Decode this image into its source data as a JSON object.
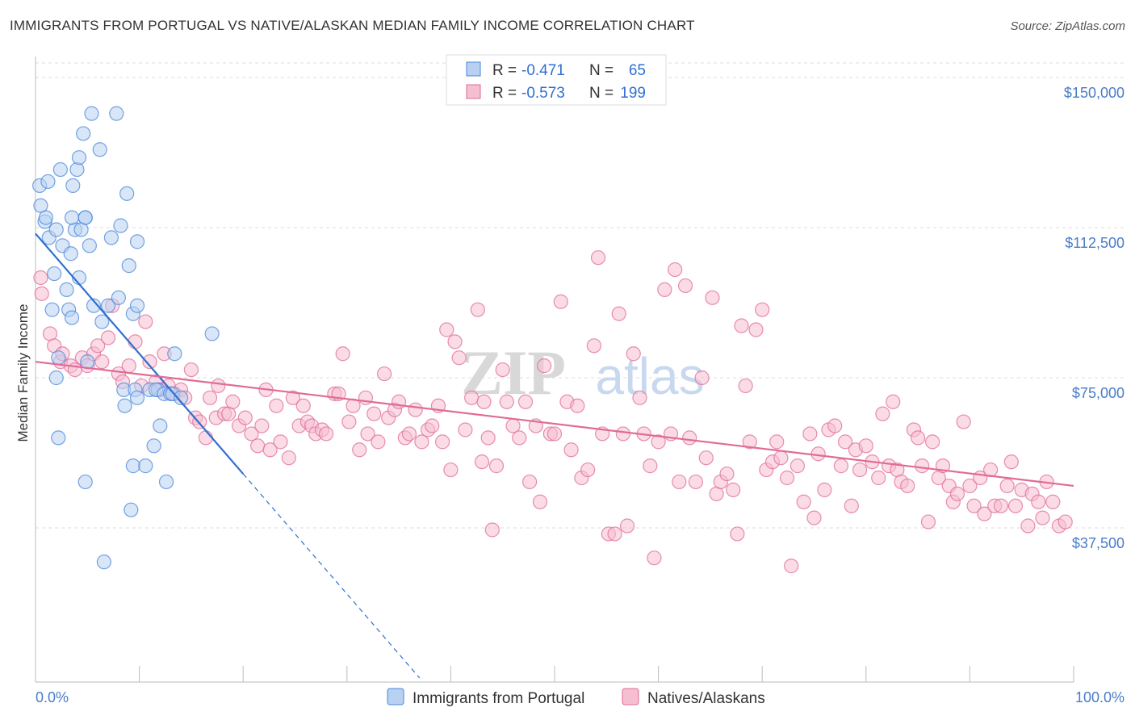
{
  "title": "IMMIGRANTS FROM PORTUGAL VS NATIVE/ALASKAN MEDIAN FAMILY INCOME CORRELATION CHART",
  "source": "Source: ZipAtlas.com",
  "watermark": {
    "zip": "ZIP",
    "atlas": "atlas"
  },
  "colors": {
    "blue": "#4a86d9",
    "blue_fill": "#b8d1f2",
    "pink": "#e06b96",
    "pink_fill": "#f5bed1",
    "axis_text": "#4a7cc9",
    "grid": "#dddddd"
  },
  "legend_top": [
    {
      "r_label": "R =",
      "r_value": "-0.471",
      "n_label": "N =",
      "n_value": "65",
      "series": "blue"
    },
    {
      "r_label": "R =",
      "r_value": "-0.573",
      "n_label": "N =",
      "n_value": "199",
      "series": "pink"
    }
  ],
  "chart_data": {
    "type": "scatter",
    "xlabel": "",
    "ylabel": "Median Family Income",
    "xlim": [
      0,
      100
    ],
    "ylim": [
      0,
      160000
    ],
    "x_tick_labels": [
      "0.0%",
      "100.0%"
    ],
    "y_ticks": [
      {
        "value": 37500,
        "label": "$37,500"
      },
      {
        "value": 75000,
        "label": "$75,000"
      },
      {
        "value": 112500,
        "label": "$112,500"
      },
      {
        "value": 150000,
        "label": "$150,000"
      }
    ],
    "series": [
      {
        "name": "Immigrants from Portugal",
        "color": "blue",
        "trend": {
          "x0": 0,
          "y0": 111000,
          "x_solid_end": 20,
          "x1": 37,
          "y1": 0
        },
        "points": [
          [
            0.4,
            123000
          ],
          [
            0.5,
            118000
          ],
          [
            0.9,
            114000
          ],
          [
            1.2,
            124000
          ],
          [
            1.0,
            115000
          ],
          [
            1.3,
            110000
          ],
          [
            2.0,
            112000
          ],
          [
            1.8,
            101000
          ],
          [
            2.4,
            127000
          ],
          [
            2.6,
            108000
          ],
          [
            3.0,
            97000
          ],
          [
            3.2,
            92000
          ],
          [
            3.5,
            90000
          ],
          [
            1.6,
            92000
          ],
          [
            2.2,
            80000
          ],
          [
            2.0,
            75000
          ],
          [
            2.2,
            60000
          ],
          [
            3.4,
            106000
          ],
          [
            3.8,
            112000
          ],
          [
            3.6,
            123000
          ],
          [
            3.5,
            115000
          ],
          [
            4.2,
            100000
          ],
          [
            4.0,
            127000
          ],
          [
            4.2,
            130000
          ],
          [
            4.8,
            115000
          ],
          [
            4.4,
            112000
          ],
          [
            4.6,
            136000
          ],
          [
            5.2,
            108000
          ],
          [
            5.4,
            141000
          ],
          [
            4.8,
            115000
          ],
          [
            5.6,
            93000
          ],
          [
            6.2,
            132000
          ],
          [
            5.0,
            79000
          ],
          [
            4.8,
            49000
          ],
          [
            6.4,
            89000
          ],
          [
            7.0,
            93000
          ],
          [
            6.6,
            29000
          ],
          [
            7.3,
            110000
          ],
          [
            7.8,
            141000
          ],
          [
            8.0,
            95000
          ],
          [
            8.2,
            113000
          ],
          [
            8.5,
            72000
          ],
          [
            8.6,
            68000
          ],
          [
            8.8,
            121000
          ],
          [
            9.0,
            103000
          ],
          [
            9.4,
            53000
          ],
          [
            9.4,
            91000
          ],
          [
            9.2,
            42000
          ],
          [
            9.8,
            93000
          ],
          [
            9.8,
            109000
          ],
          [
            9.6,
            72000
          ],
          [
            9.8,
            70000
          ],
          [
            10.6,
            53000
          ],
          [
            11.0,
            72000
          ],
          [
            11.4,
            58000
          ],
          [
            11.8,
            72000
          ],
          [
            11.6,
            72000
          ],
          [
            12.0,
            63000
          ],
          [
            12.4,
            71000
          ],
          [
            12.6,
            49000
          ],
          [
            13.0,
            71000
          ],
          [
            13.2,
            71000
          ],
          [
            13.4,
            81000
          ],
          [
            14.0,
            70000
          ],
          [
            17.0,
            86000
          ]
        ]
      },
      {
        "name": "Natives/Alaskans",
        "color": "pink",
        "trend": {
          "x0": 0,
          "y0": 79000,
          "x1": 100,
          "y1": 48000
        },
        "points": [
          [
            0.5,
            100000
          ],
          [
            0.6,
            96000
          ],
          [
            1.4,
            86000
          ],
          [
            1.8,
            83000
          ],
          [
            2.4,
            79000
          ],
          [
            2.6,
            81000
          ],
          [
            3.4,
            78000
          ],
          [
            3.8,
            77000
          ],
          [
            4.5,
            80000
          ],
          [
            5.0,
            78000
          ],
          [
            5.6,
            81000
          ],
          [
            6.0,
            83000
          ],
          [
            6.4,
            79000
          ],
          [
            7.0,
            85000
          ],
          [
            7.4,
            93000
          ],
          [
            8.0,
            76000
          ],
          [
            8.4,
            74000
          ],
          [
            9.0,
            78000
          ],
          [
            9.6,
            84000
          ],
          [
            10.2,
            73000
          ],
          [
            10.6,
            89000
          ],
          [
            11.0,
            79000
          ],
          [
            11.6,
            74000
          ],
          [
            12.0,
            72000
          ],
          [
            12.4,
            81000
          ],
          [
            12.8,
            73000
          ],
          [
            13.4,
            71000
          ],
          [
            14.0,
            72000
          ],
          [
            14.4,
            70000
          ],
          [
            15.0,
            77000
          ],
          [
            15.4,
            65000
          ],
          [
            15.8,
            64000
          ],
          [
            16.4,
            60000
          ],
          [
            16.8,
            70000
          ],
          [
            17.4,
            65000
          ],
          [
            17.6,
            73000
          ],
          [
            18.2,
            66000
          ],
          [
            18.6,
            66000
          ],
          [
            19.0,
            69000
          ],
          [
            19.6,
            63000
          ],
          [
            20.2,
            65000
          ],
          [
            20.8,
            61000
          ],
          [
            21.4,
            58000
          ],
          [
            21.8,
            63000
          ],
          [
            22.2,
            72000
          ],
          [
            22.6,
            57000
          ],
          [
            23.2,
            68000
          ],
          [
            23.6,
            59000
          ],
          [
            24.4,
            55000
          ],
          [
            24.8,
            70000
          ],
          [
            25.4,
            63000
          ],
          [
            25.8,
            68000
          ],
          [
            26.2,
            64000
          ],
          [
            26.6,
            63000
          ],
          [
            27.0,
            61000
          ],
          [
            27.6,
            62000
          ],
          [
            28.0,
            61000
          ],
          [
            28.8,
            71000
          ],
          [
            29.2,
            71000
          ],
          [
            29.6,
            81000
          ],
          [
            30.2,
            64000
          ],
          [
            30.6,
            68000
          ],
          [
            31.2,
            57000
          ],
          [
            31.8,
            70000
          ],
          [
            32.0,
            61000
          ],
          [
            32.6,
            66000
          ],
          [
            33.0,
            59000
          ],
          [
            33.6,
            76000
          ],
          [
            34.0,
            65000
          ],
          [
            34.6,
            67000
          ],
          [
            35.0,
            69000
          ],
          [
            35.6,
            60000
          ],
          [
            36.0,
            61000
          ],
          [
            36.6,
            67000
          ],
          [
            37.2,
            59000
          ],
          [
            37.8,
            62000
          ],
          [
            38.2,
            63000
          ],
          [
            38.8,
            68000
          ],
          [
            39.2,
            59000
          ],
          [
            39.6,
            87000
          ],
          [
            40.0,
            52000
          ],
          [
            40.4,
            84000
          ],
          [
            40.8,
            80000
          ],
          [
            41.4,
            62000
          ],
          [
            42.0,
            70000
          ],
          [
            42.6,
            92000
          ],
          [
            43.0,
            54000
          ],
          [
            43.2,
            69000
          ],
          [
            43.6,
            60000
          ],
          [
            44.0,
            37000
          ],
          [
            44.4,
            53000
          ],
          [
            45.0,
            77000
          ],
          [
            45.4,
            69000
          ],
          [
            46.0,
            63000
          ],
          [
            46.6,
            60000
          ],
          [
            47.2,
            69000
          ],
          [
            47.6,
            49000
          ],
          [
            48.2,
            63000
          ],
          [
            48.6,
            44000
          ],
          [
            49.0,
            78000
          ],
          [
            49.6,
            61000
          ],
          [
            50.0,
            61000
          ],
          [
            50.6,
            94000
          ],
          [
            51.2,
            69000
          ],
          [
            51.6,
            57000
          ],
          [
            52.2,
            68000
          ],
          [
            52.6,
            50000
          ],
          [
            53.2,
            52000
          ],
          [
            53.8,
            83000
          ],
          [
            54.2,
            105000
          ],
          [
            54.6,
            61000
          ],
          [
            55.2,
            36000
          ],
          [
            55.8,
            36000
          ],
          [
            56.2,
            91000
          ],
          [
            56.6,
            61000
          ],
          [
            57.0,
            38000
          ],
          [
            57.6,
            81000
          ],
          [
            58.2,
            70000
          ],
          [
            58.6,
            61000
          ],
          [
            59.2,
            53000
          ],
          [
            59.6,
            30000
          ],
          [
            60.0,
            59000
          ],
          [
            60.6,
            97000
          ],
          [
            61.2,
            61000
          ],
          [
            61.6,
            102000
          ],
          [
            62.0,
            49000
          ],
          [
            62.6,
            98000
          ],
          [
            63.0,
            60000
          ],
          [
            63.6,
            49000
          ],
          [
            64.2,
            75000
          ],
          [
            64.6,
            55000
          ],
          [
            65.2,
            95000
          ],
          [
            65.6,
            46000
          ],
          [
            66.0,
            49000
          ],
          [
            66.6,
            51000
          ],
          [
            67.2,
            47000
          ],
          [
            67.6,
            36000
          ],
          [
            68.0,
            88000
          ],
          [
            68.4,
            73000
          ],
          [
            68.8,
            59000
          ],
          [
            69.4,
            87000
          ],
          [
            70.0,
            92000
          ],
          [
            70.4,
            52000
          ],
          [
            71.0,
            54000
          ],
          [
            71.4,
            59000
          ],
          [
            71.8,
            55000
          ],
          [
            72.4,
            50000
          ],
          [
            72.8,
            28000
          ],
          [
            73.4,
            53000
          ],
          [
            74.0,
            44000
          ],
          [
            74.6,
            61000
          ],
          [
            75.0,
            40000
          ],
          [
            75.4,
            56000
          ],
          [
            76.0,
            47000
          ],
          [
            76.4,
            62000
          ],
          [
            77.0,
            63000
          ],
          [
            77.6,
            53000
          ],
          [
            78.0,
            59000
          ],
          [
            78.6,
            43000
          ],
          [
            79.0,
            57000
          ],
          [
            79.4,
            52000
          ],
          [
            80.0,
            58000
          ],
          [
            80.6,
            54000
          ],
          [
            81.2,
            50000
          ],
          [
            81.6,
            66000
          ],
          [
            82.2,
            53000
          ],
          [
            82.6,
            69000
          ],
          [
            83.0,
            52000
          ],
          [
            83.4,
            49000
          ],
          [
            84.0,
            48000
          ],
          [
            84.6,
            62000
          ],
          [
            85.0,
            60000
          ],
          [
            85.4,
            53000
          ],
          [
            86.0,
            39000
          ],
          [
            86.4,
            59000
          ],
          [
            87.0,
            50000
          ],
          [
            87.4,
            53000
          ],
          [
            88.0,
            48000
          ],
          [
            88.4,
            44000
          ],
          [
            88.8,
            46000
          ],
          [
            89.4,
            64000
          ],
          [
            90.0,
            48000
          ],
          [
            90.4,
            43000
          ],
          [
            91.0,
            50000
          ],
          [
            91.4,
            41000
          ],
          [
            92.0,
            52000
          ],
          [
            92.4,
            43000
          ],
          [
            93.0,
            43000
          ],
          [
            93.6,
            48000
          ],
          [
            94.0,
            54000
          ],
          [
            94.4,
            43000
          ],
          [
            95.0,
            47000
          ],
          [
            95.6,
            38000
          ],
          [
            96.0,
            46000
          ],
          [
            96.6,
            44000
          ],
          [
            97.0,
            40000
          ],
          [
            97.4,
            49000
          ],
          [
            98.0,
            44000
          ],
          [
            98.6,
            38000
          ],
          [
            99.2,
            39000
          ]
        ]
      }
    ]
  },
  "bottom_legend": [
    {
      "label": "Immigrants from Portugal",
      "series": "blue"
    },
    {
      "label": "Natives/Alaskans",
      "series": "pink"
    }
  ]
}
